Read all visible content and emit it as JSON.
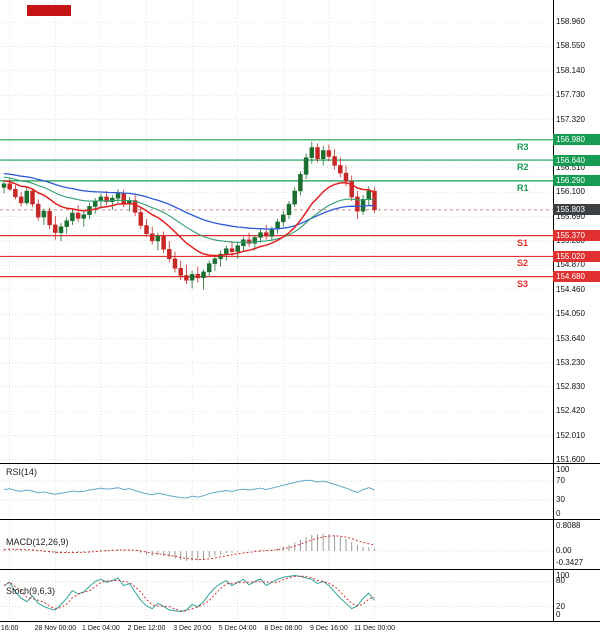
{
  "colors": {
    "resistance": "#169b52",
    "support": "#e03030",
    "current_badge": "#3c4043",
    "bull": "#1b6e2f",
    "bear": "#c62828",
    "ma_fast": "#e02020",
    "ma_mid": "#2f9e6e",
    "ma_slow": "#2e5bd7",
    "rsi_line": "#64a8c8",
    "stoch_line": "#2fa39b",
    "signal_line": "#cc2222",
    "histogram": "#9a9a9a",
    "grid": "#d0d0d0"
  },
  "indicators": {
    "rsi": {
      "label": "RSI(14)",
      "axis": [
        {
          "text": "100",
          "value": 100
        },
        {
          "text": "70",
          "value": 70
        },
        {
          "text": "30",
          "value": 30
        },
        {
          "text": "0",
          "value": 0
        }
      ],
      "levels": [
        70,
        30
      ]
    },
    "macd": {
      "label": "MACD(12,26,9)",
      "axis": [
        {
          "text": "0.8088",
          "value": 0.8088
        },
        {
          "text": "0.00",
          "value": 0
        },
        {
          "text": "-0.3427",
          "value": -0.3427
        }
      ]
    },
    "stoch": {
      "label": "Stoch(9,6,3)",
      "axis": [
        {
          "text": "100",
          "value": 100
        },
        {
          "text": "80",
          "value": 80
        },
        {
          "text": "20",
          "value": 20
        },
        {
          "text": "0",
          "value": 0
        }
      ],
      "levels": [
        80,
        20
      ]
    }
  },
  "chart_data": {
    "type": "candlestick",
    "ylim": [
      151.6,
      158.96
    ],
    "price_axis_labels": [
      "158.960",
      "158.550",
      "158.140",
      "157.730",
      "157.320",
      "156.510",
      "156.100",
      "155.690",
      "155.280",
      "154.870",
      "154.460",
      "154.050",
      "153.640",
      "153.230",
      "152.830",
      "152.420",
      "152.010",
      "151.600"
    ],
    "badges": [
      {
        "text": "156.980",
        "value": 156.98,
        "kind": "resistance"
      },
      {
        "text": "156.640",
        "value": 156.64,
        "kind": "resistance"
      },
      {
        "text": "156.290",
        "value": 156.29,
        "kind": "resistance"
      },
      {
        "text": "155.803",
        "value": 155.803,
        "kind": "current"
      },
      {
        "text": "155.370",
        "value": 155.37,
        "kind": "support"
      },
      {
        "text": "155.020",
        "value": 155.02,
        "kind": "support"
      },
      {
        "text": "154.680",
        "value": 154.68,
        "kind": "support"
      }
    ],
    "sr_labels": [
      {
        "text": "R3",
        "price": 156.98,
        "kind": "resistance"
      },
      {
        "text": "R2",
        "price": 156.64,
        "kind": "resistance"
      },
      {
        "text": "R1",
        "price": 156.29,
        "kind": "resistance"
      },
      {
        "text": "S1",
        "price": 155.37,
        "kind": "support"
      },
      {
        "text": "S2",
        "price": 155.02,
        "kind": "support"
      },
      {
        "text": "S3",
        "price": 154.68,
        "kind": "support"
      }
    ],
    "resistance": [
      156.98,
      156.64,
      156.29
    ],
    "support": [
      155.37,
      155.02,
      154.68
    ],
    "current_price": 155.803,
    "time_labels": [
      {
        "text": "16:00",
        "i": 1
      },
      {
        "text": "28 Nov 00:00",
        "i": 9
      },
      {
        "text": "1 Dec 04:00",
        "i": 17
      },
      {
        "text": "2 Dec 12:00",
        "i": 25
      },
      {
        "text": "3 Dec 20:00",
        "i": 33
      },
      {
        "text": "5 Dec 04:00",
        "i": 41
      },
      {
        "text": "8 Dec 08:00",
        "i": 49
      },
      {
        "text": "9 Dec 16:00",
        "i": 57
      },
      {
        "text": "11 Dec 00:00",
        "i": 65
      }
    ],
    "ohlc": [
      [
        156.18,
        156.3,
        156.08,
        156.24
      ],
      [
        156.24,
        156.33,
        156.12,
        156.15
      ],
      [
        156.15,
        156.22,
        155.98,
        156.02
      ],
      [
        156.02,
        156.1,
        155.86,
        155.92
      ],
      [
        155.92,
        156.18,
        155.88,
        156.12
      ],
      [
        156.12,
        156.16,
        155.85,
        155.9
      ],
      [
        155.9,
        155.98,
        155.62,
        155.68
      ],
      [
        155.68,
        155.82,
        155.55,
        155.78
      ],
      [
        155.78,
        155.84,
        155.48,
        155.55
      ],
      [
        155.55,
        155.7,
        155.3,
        155.42
      ],
      [
        155.42,
        155.58,
        155.28,
        155.52
      ],
      [
        155.52,
        155.68,
        155.4,
        155.62
      ],
      [
        155.62,
        155.8,
        155.55,
        155.75
      ],
      [
        155.75,
        155.88,
        155.6,
        155.66
      ],
      [
        155.66,
        155.78,
        155.52,
        155.72
      ],
      [
        155.72,
        155.92,
        155.65,
        155.86
      ],
      [
        155.86,
        156.0,
        155.74,
        155.95
      ],
      [
        155.95,
        156.08,
        155.82,
        156.02
      ],
      [
        156.02,
        156.12,
        155.88,
        155.94
      ],
      [
        155.94,
        156.05,
        155.8,
        156.0
      ],
      [
        156.0,
        156.15,
        155.92,
        156.08
      ],
      [
        156.08,
        156.14,
        155.85,
        155.9
      ],
      [
        155.9,
        156.02,
        155.78,
        155.96
      ],
      [
        155.96,
        156.05,
        155.7,
        155.76
      ],
      [
        155.76,
        155.85,
        155.48,
        155.54
      ],
      [
        155.54,
        155.65,
        155.35,
        155.4
      ],
      [
        155.4,
        155.52,
        155.22,
        155.28
      ],
      [
        155.28,
        155.42,
        155.12,
        155.36
      ],
      [
        155.36,
        155.44,
        155.08,
        155.14
      ],
      [
        155.14,
        155.28,
        154.92,
        154.98
      ],
      [
        154.98,
        155.1,
        154.75,
        154.82
      ],
      [
        154.82,
        154.95,
        154.62,
        154.7
      ],
      [
        154.7,
        154.88,
        154.55,
        154.62
      ],
      [
        154.62,
        154.78,
        154.48,
        154.72
      ],
      [
        154.72,
        154.85,
        154.58,
        154.66
      ],
      [
        154.66,
        154.8,
        154.46,
        154.76
      ],
      [
        154.76,
        154.95,
        154.68,
        154.9
      ],
      [
        154.9,
        155.05,
        154.78,
        154.98
      ],
      [
        154.98,
        155.12,
        154.85,
        155.06
      ],
      [
        155.06,
        155.2,
        154.95,
        155.15
      ],
      [
        155.15,
        155.28,
        155.02,
        155.1
      ],
      [
        155.1,
        155.25,
        154.98,
        155.2
      ],
      [
        155.2,
        155.35,
        155.1,
        155.3
      ],
      [
        155.3,
        155.42,
        155.18,
        155.24
      ],
      [
        155.24,
        155.38,
        155.12,
        155.34
      ],
      [
        155.34,
        155.48,
        155.25,
        155.42
      ],
      [
        155.42,
        155.55,
        155.3,
        155.36
      ],
      [
        155.36,
        155.52,
        155.28,
        155.48
      ],
      [
        155.48,
        155.65,
        155.4,
        155.6
      ],
      [
        155.6,
        155.78,
        155.52,
        155.72
      ],
      [
        155.72,
        155.95,
        155.65,
        155.9
      ],
      [
        155.9,
        156.18,
        155.85,
        156.12
      ],
      [
        156.12,
        156.45,
        156.05,
        156.4
      ],
      [
        156.4,
        156.75,
        156.32,
        156.68
      ],
      [
        156.68,
        156.95,
        156.58,
        156.85
      ],
      [
        156.85,
        156.92,
        156.6,
        156.66
      ],
      [
        156.66,
        156.88,
        156.55,
        156.8
      ],
      [
        156.8,
        156.9,
        156.62,
        156.7
      ],
      [
        156.7,
        156.82,
        156.48,
        156.55
      ],
      [
        156.55,
        156.68,
        156.35,
        156.42
      ],
      [
        156.42,
        156.55,
        156.2,
        156.28
      ],
      [
        156.28,
        156.38,
        155.95,
        156.02
      ],
      [
        156.02,
        156.12,
        155.65,
        155.78
      ],
      [
        155.78,
        156.05,
        155.72,
        155.98
      ],
      [
        155.98,
        156.2,
        155.88,
        156.12
      ],
      [
        156.12,
        156.18,
        155.75,
        155.803
      ]
    ],
    "rsi": [
      52,
      54,
      50,
      48,
      51,
      49,
      45,
      47,
      44,
      42,
      44,
      46,
      49,
      47,
      48,
      51,
      53,
      55,
      53,
      54,
      56,
      52,
      54,
      50,
      46,
      43,
      41,
      44,
      42,
      39,
      37,
      35,
      34,
      38,
      36,
      39,
      43,
      46,
      48,
      50,
      48,
      51,
      53,
      51,
      53,
      55,
      52,
      55,
      58,
      61,
      64,
      67,
      70,
      72,
      71,
      68,
      70,
      67,
      63,
      59,
      55,
      50,
      46,
      52,
      56,
      51
    ],
    "macd": [
      0.05,
      0.06,
      0.04,
      0.02,
      0.03,
      0.01,
      -0.02,
      -0.03,
      -0.05,
      -0.08,
      -0.07,
      -0.05,
      -0.03,
      -0.04,
      -0.03,
      -0.01,
      0.01,
      0.03,
      0.03,
      0.04,
      0.05,
      0.03,
      0.03,
      0.0,
      -0.05,
      -0.1,
      -0.14,
      -0.12,
      -0.14,
      -0.18,
      -0.22,
      -0.26,
      -0.28,
      -0.26,
      -0.27,
      -0.24,
      -0.19,
      -0.14,
      -0.1,
      -0.06,
      -0.05,
      -0.02,
      0.01,
      0.01,
      0.02,
      0.04,
      0.03,
      0.05,
      0.08,
      0.12,
      0.17,
      0.24,
      0.32,
      0.4,
      0.46,
      0.48,
      0.49,
      0.48,
      0.45,
      0.4,
      0.34,
      0.26,
      0.17,
      0.12,
      0.11,
      0.08
    ],
    "stoch": [
      70,
      78,
      55,
      40,
      32,
      45,
      28,
      20,
      15,
      12,
      25,
      40,
      58,
      50,
      55,
      68,
      80,
      85,
      78,
      82,
      88,
      70,
      75,
      55,
      35,
      22,
      15,
      28,
      20,
      12,
      10,
      8,
      12,
      25,
      20,
      32,
      50,
      65,
      75,
      82,
      70,
      78,
      85,
      72,
      80,
      86,
      70,
      78,
      85,
      90,
      92,
      94,
      92,
      88,
      85,
      75,
      80,
      70,
      55,
      40,
      28,
      15,
      22,
      40,
      52,
      35
    ]
  }
}
